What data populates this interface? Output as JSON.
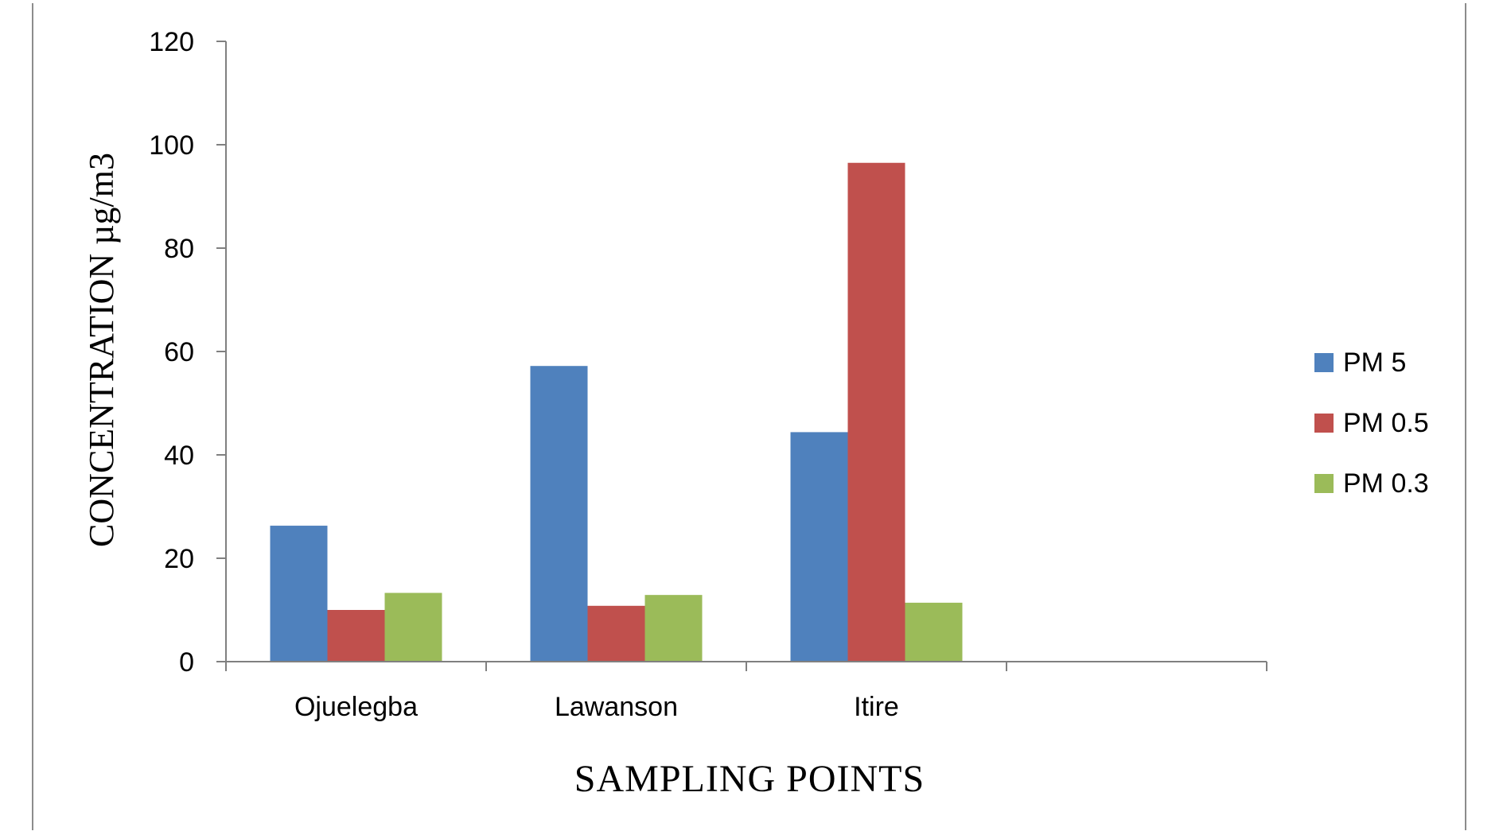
{
  "chart_data": {
    "type": "bar",
    "title": "",
    "xlabel": "SAMPLING POINTS",
    "ylabel": "CONCENTRATION µg/m3",
    "categories": [
      "Ojuelegba",
      "Lawanson",
      "Itire",
      ""
    ],
    "series": [
      {
        "name": "PM 5",
        "color": "#4f81bd",
        "values": [
          26.3,
          57.2,
          44.4,
          null
        ]
      },
      {
        "name": "PM 0.5",
        "color": "#c0504d",
        "values": [
          10.0,
          10.8,
          96.5,
          null
        ]
      },
      {
        "name": "PM 0.3",
        "color": "#9bbb59",
        "values": [
          13.3,
          12.9,
          11.4,
          null
        ]
      }
    ],
    "ylim": [
      0,
      120
    ],
    "yticks": [
      0,
      20,
      40,
      60,
      80,
      100,
      120
    ],
    "grid": false,
    "legend": "right"
  }
}
